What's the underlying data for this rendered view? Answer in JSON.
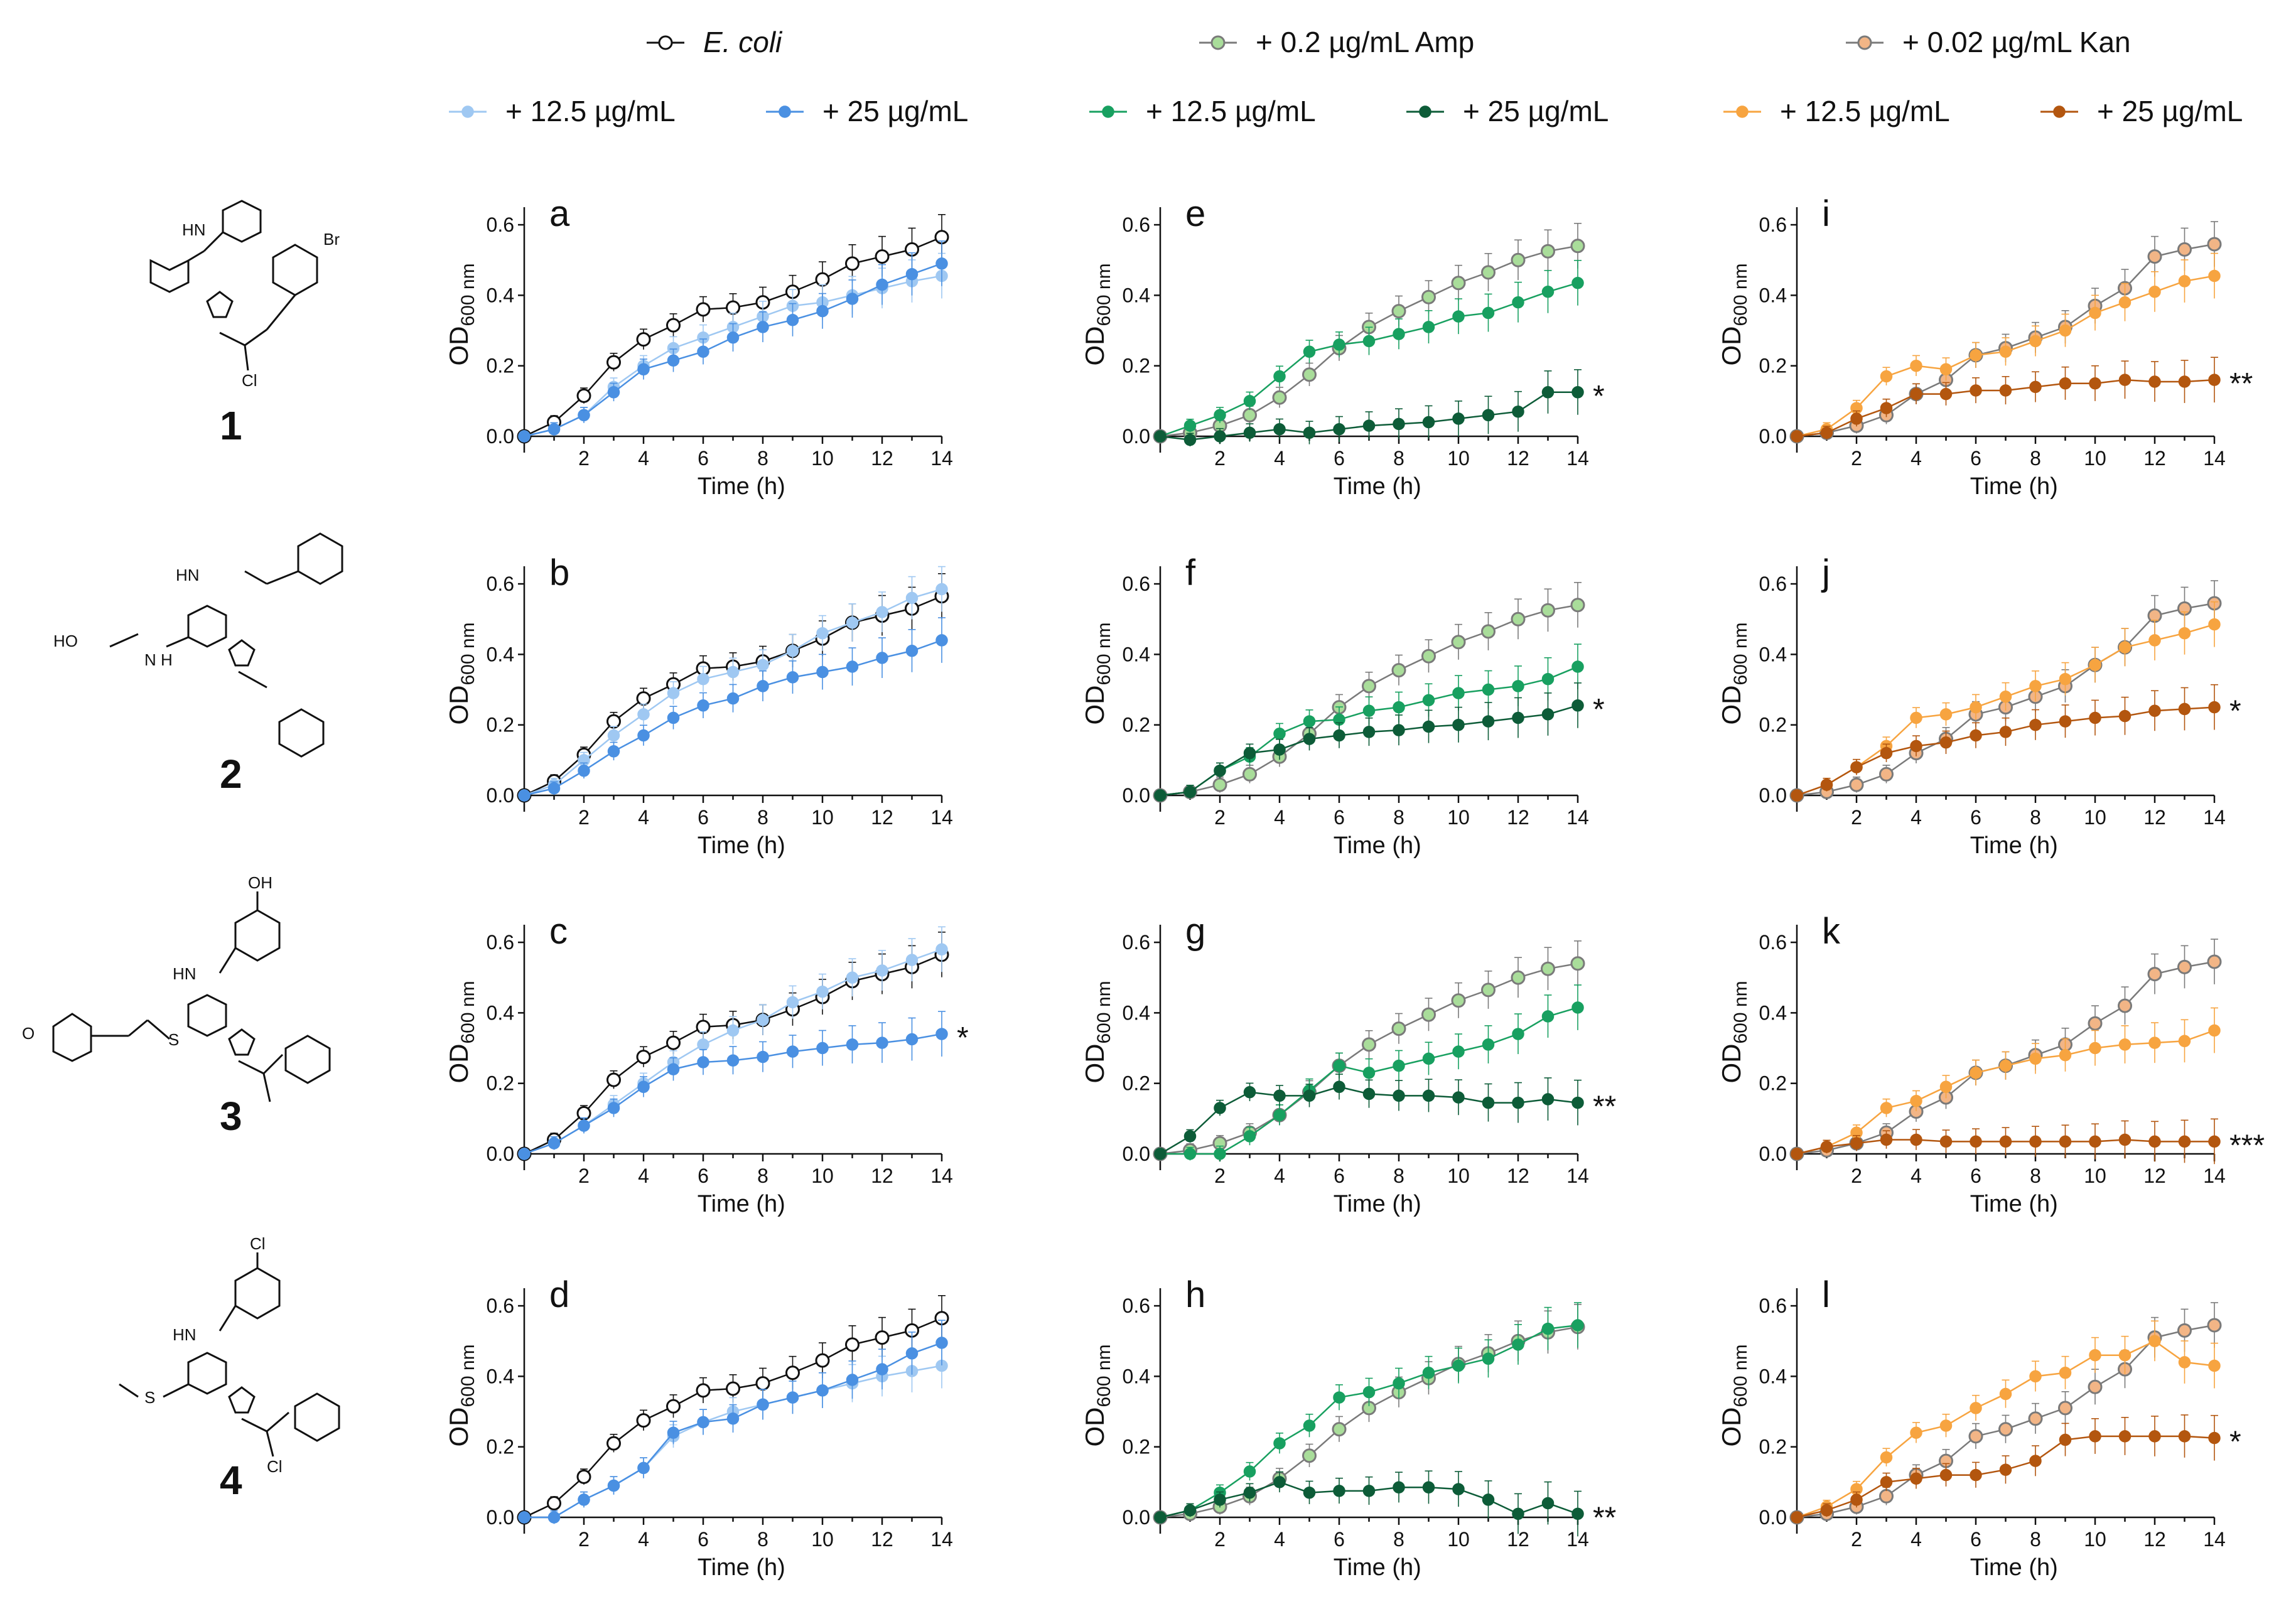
{
  "legend": {
    "row1": [
      {
        "text": "E. coli",
        "italic": true,
        "key": "ecoli"
      },
      {
        "text": "+ 0.2 µg/mL Amp",
        "key": "amp"
      },
      {
        "text": "+ 0.02 µg/mL Kan",
        "key": "kan"
      }
    ],
    "row2": [
      {
        "text": "+ 12.5 µg/mL",
        "key": "b1"
      },
      {
        "text": "+ 25 µg/mL",
        "key": "b2"
      },
      {
        "text": "+ 12.5 µg/mL",
        "key": "g1"
      },
      {
        "text": "+ 25 µg/mL",
        "key": "g2"
      },
      {
        "text": "+ 12.5 µg/mL",
        "key": "o1"
      },
      {
        "text": "+ 25 µg/mL",
        "key": "o2"
      }
    ]
  },
  "colors": {
    "ecoli": {
      "line": "#111111",
      "fill": "#ffffff"
    },
    "amp": {
      "line": "#7a7a7a",
      "fill": "#a9dd9a"
    },
    "kan": {
      "line": "#7a7a7a",
      "fill": "#f2b586"
    },
    "b1": {
      "line": "#9fc8f2",
      "fill": "#9fc8f2"
    },
    "b2": {
      "line": "#4a90e2",
      "fill": "#4a90e2"
    },
    "g1": {
      "line": "#18a060",
      "fill": "#18a060"
    },
    "g2": {
      "line": "#0d5c38",
      "fill": "#0d5c38"
    },
    "o1": {
      "line": "#f7a440",
      "fill": "#f7a440"
    },
    "o2": {
      "line": "#b3560f",
      "fill": "#b3560f"
    }
  },
  "compounds": [
    {
      "number": "1",
      "substituents": {
        "top": "HN",
        "side": "Br",
        "tail": "Cl"
      }
    },
    {
      "number": "2",
      "substituents": {
        "top": "HN",
        "side": "HO",
        "tail": "N H"
      }
    },
    {
      "number": "3",
      "substituents": {
        "top": "OH",
        "nh": "HN",
        "side": "O",
        "s": "S"
      }
    },
    {
      "number": "4",
      "substituents": {
        "top": "Cl",
        "nh": "HN",
        "side": "S",
        "tail": "Cl"
      }
    }
  ],
  "axis_labels": {
    "y": "OD",
    "y_sub": "600 nm",
    "x": "Time (h)"
  },
  "chart_data": {
    "type": "line",
    "x": [
      0,
      1,
      2,
      3,
      4,
      5,
      6,
      7,
      8,
      9,
      10,
      11,
      12,
      13,
      14
    ],
    "xlim": [
      0,
      14
    ],
    "ylim": [
      0,
      0.65
    ],
    "xticks": [
      2,
      4,
      6,
      8,
      10,
      12,
      14
    ],
    "yticks": [
      0.0,
      0.2,
      0.4,
      0.6
    ],
    "xtick_labels": [
      "2",
      "4",
      "6",
      "8",
      "10",
      "12",
      "14"
    ],
    "ytick_labels": [
      "0.0",
      "0.2",
      "0.4",
      "0.6"
    ],
    "xlabel": "Time (h)",
    "ylabel": "OD600 nm",
    "references": {
      "ecoli": [
        0,
        0.04,
        0.115,
        0.21,
        0.275,
        0.315,
        0.36,
        0.365,
        0.38,
        0.41,
        0.445,
        0.49,
        0.51,
        0.53,
        0.565
      ],
      "amp": [
        0,
        0.01,
        0.03,
        0.06,
        0.11,
        0.175,
        0.25,
        0.31,
        0.355,
        0.395,
        0.435,
        0.465,
        0.5,
        0.525,
        0.54
      ],
      "kan": [
        0,
        0.01,
        0.03,
        0.06,
        0.12,
        0.16,
        0.23,
        0.25,
        0.28,
        0.31,
        0.37,
        0.42,
        0.51,
        0.53,
        0.545
      ]
    },
    "panels": [
      {
        "id": "a",
        "col": 0,
        "row": 0,
        "ref": "ecoli",
        "series": [
          {
            "key": "b1",
            "values": [
              0,
              0.02,
              0.06,
              0.14,
              0.2,
              0.25,
              0.28,
              0.31,
              0.34,
              0.37,
              0.38,
              0.4,
              0.42,
              0.44,
              0.455
            ]
          },
          {
            "key": "b2",
            "values": [
              0,
              0.02,
              0.06,
              0.125,
              0.19,
              0.215,
              0.24,
              0.28,
              0.31,
              0.33,
              0.355,
              0.39,
              0.43,
              0.46,
              0.49
            ]
          }
        ],
        "sig": ""
      },
      {
        "id": "b",
        "col": 0,
        "row": 1,
        "ref": "ecoli",
        "series": [
          {
            "key": "b1",
            "values": [
              0,
              0.03,
              0.1,
              0.17,
              0.23,
              0.29,
              0.33,
              0.35,
              0.37,
              0.41,
              0.46,
              0.49,
              0.52,
              0.56,
              0.585
            ]
          },
          {
            "key": "b2",
            "values": [
              0,
              0.02,
              0.07,
              0.125,
              0.17,
              0.22,
              0.255,
              0.275,
              0.31,
              0.335,
              0.35,
              0.365,
              0.39,
              0.41,
              0.44
            ]
          }
        ],
        "sig": ""
      },
      {
        "id": "c",
        "col": 0,
        "row": 2,
        "ref": "ecoli",
        "series": [
          {
            "key": "b1",
            "values": [
              0,
              0.03,
              0.08,
              0.14,
              0.2,
              0.26,
              0.31,
              0.35,
              0.38,
              0.43,
              0.46,
              0.5,
              0.52,
              0.55,
              0.58
            ]
          },
          {
            "key": "b2",
            "values": [
              0,
              0.03,
              0.08,
              0.13,
              0.19,
              0.24,
              0.26,
              0.265,
              0.275,
              0.29,
              0.3,
              0.31,
              0.315,
              0.325,
              0.34
            ]
          }
        ],
        "sig": "*"
      },
      {
        "id": "d",
        "col": 0,
        "row": 3,
        "ref": "ecoli",
        "series": [
          {
            "key": "b1",
            "values": [
              0,
              0,
              0.05,
              0.09,
              0.14,
              0.23,
              0.27,
              0.3,
              0.32,
              0.34,
              0.36,
              0.38,
              0.4,
              0.415,
              0.43
            ]
          },
          {
            "key": "b2",
            "values": [
              0,
              0,
              0.05,
              0.09,
              0.14,
              0.24,
              0.27,
              0.28,
              0.32,
              0.34,
              0.36,
              0.39,
              0.42,
              0.465,
              0.495
            ]
          }
        ],
        "sig": ""
      },
      {
        "id": "e",
        "col": 1,
        "row": 0,
        "ref": "amp",
        "series": [
          {
            "key": "g1",
            "values": [
              0,
              0.03,
              0.06,
              0.1,
              0.17,
              0.24,
              0.26,
              0.27,
              0.29,
              0.31,
              0.34,
              0.35,
              0.38,
              0.41,
              0.435
            ]
          },
          {
            "key": "g2",
            "values": [
              0,
              -0.01,
              0,
              0.01,
              0.02,
              0.01,
              0.02,
              0.03,
              0.035,
              0.04,
              0.05,
              0.06,
              0.07,
              0.125,
              0.125
            ]
          }
        ],
        "sig": "*"
      },
      {
        "id": "f",
        "col": 1,
        "row": 1,
        "ref": "amp",
        "series": [
          {
            "key": "g1",
            "values": [
              0,
              0.01,
              0.07,
              0.11,
              0.175,
              0.21,
              0.215,
              0.24,
              0.25,
              0.27,
              0.29,
              0.3,
              0.31,
              0.33,
              0.365
            ]
          },
          {
            "key": "g2",
            "values": [
              0,
              0.01,
              0.07,
              0.12,
              0.13,
              0.16,
              0.17,
              0.18,
              0.185,
              0.195,
              0.2,
              0.21,
              0.22,
              0.23,
              0.255
            ]
          }
        ],
        "sig": "*"
      },
      {
        "id": "g",
        "col": 1,
        "row": 2,
        "ref": "amp",
        "series": [
          {
            "key": "g1",
            "values": [
              0,
              0,
              0,
              0.05,
              0.11,
              0.18,
              0.25,
              0.23,
              0.25,
              0.27,
              0.29,
              0.31,
              0.34,
              0.39,
              0.415
            ]
          },
          {
            "key": "g2",
            "values": [
              0,
              0.05,
              0.13,
              0.175,
              0.165,
              0.165,
              0.19,
              0.17,
              0.165,
              0.165,
              0.16,
              0.145,
              0.145,
              0.155,
              0.145
            ]
          }
        ],
        "sig": "**"
      },
      {
        "id": "h",
        "col": 1,
        "row": 3,
        "ref": "amp",
        "series": [
          {
            "key": "g1",
            "values": [
              0,
              0.02,
              0.07,
              0.13,
              0.21,
              0.26,
              0.34,
              0.355,
              0.38,
              0.41,
              0.43,
              0.45,
              0.49,
              0.535,
              0.545
            ]
          },
          {
            "key": "g2",
            "values": [
              0,
              0.02,
              0.05,
              0.07,
              0.1,
              0.07,
              0.075,
              0.075,
              0.085,
              0.085,
              0.08,
              0.05,
              0.01,
              0.04,
              0.01
            ]
          }
        ],
        "sig": "**"
      },
      {
        "id": "i",
        "col": 2,
        "row": 0,
        "ref": "kan",
        "series": [
          {
            "key": "o1",
            "values": [
              0,
              0.02,
              0.08,
              0.17,
              0.2,
              0.19,
              0.23,
              0.24,
              0.27,
              0.3,
              0.35,
              0.38,
              0.41,
              0.44,
              0.455
            ]
          },
          {
            "key": "o2",
            "values": [
              0,
              0.01,
              0.05,
              0.08,
              0.12,
              0.12,
              0.13,
              0.13,
              0.14,
              0.15,
              0.15,
              0.16,
              0.155,
              0.155,
              0.16
            ]
          }
        ],
        "sig": "**"
      },
      {
        "id": "j",
        "col": 2,
        "row": 1,
        "ref": "kan",
        "series": [
          {
            "key": "o1",
            "values": [
              0,
              0.03,
              0.08,
              0.14,
              0.22,
              0.23,
              0.25,
              0.28,
              0.31,
              0.33,
              0.37,
              0.42,
              0.44,
              0.46,
              0.485
            ]
          },
          {
            "key": "o2",
            "values": [
              0,
              0.03,
              0.08,
              0.12,
              0.14,
              0.15,
              0.17,
              0.18,
              0.2,
              0.21,
              0.22,
              0.225,
              0.24,
              0.245,
              0.25
            ]
          }
        ],
        "sig": "*"
      },
      {
        "id": "k",
        "col": 2,
        "row": 2,
        "ref": "kan",
        "series": [
          {
            "key": "o1",
            "values": [
              0,
              0.02,
              0.06,
              0.13,
              0.15,
              0.19,
              0.23,
              0.25,
              0.27,
              0.28,
              0.3,
              0.31,
              0.315,
              0.32,
              0.35
            ]
          },
          {
            "key": "o2",
            "values": [
              0,
              0.02,
              0.03,
              0.04,
              0.04,
              0.035,
              0.035,
              0.035,
              0.035,
              0.035,
              0.035,
              0.04,
              0.035,
              0.035,
              0.035
            ]
          }
        ],
        "sig": "***"
      },
      {
        "id": "l",
        "col": 2,
        "row": 3,
        "ref": "kan",
        "series": [
          {
            "key": "o1",
            "values": [
              0,
              0.03,
              0.08,
              0.17,
              0.24,
              0.26,
              0.31,
              0.35,
              0.4,
              0.41,
              0.46,
              0.46,
              0.5,
              0.44,
              0.43
            ]
          },
          {
            "key": "o2",
            "values": [
              0,
              0.02,
              0.05,
              0.1,
              0.11,
              0.12,
              0.12,
              0.135,
              0.16,
              0.22,
              0.23,
              0.23,
              0.23,
              0.23,
              0.225
            ]
          }
        ],
        "sig": "*"
      }
    ]
  }
}
